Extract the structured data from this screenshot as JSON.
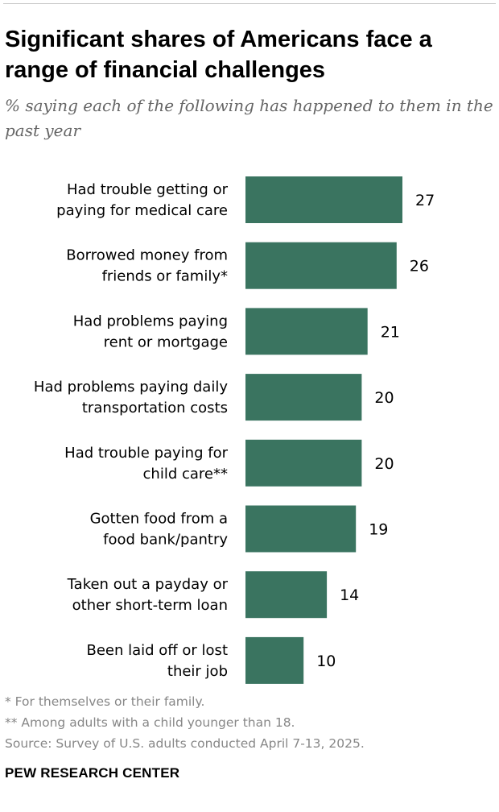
{
  "title": "Significant shares of Americans face a range of financial challenges",
  "subtitle": "% saying each of the following has happened to them in the past year",
  "chart_data": {
    "type": "bar",
    "orientation": "horizontal",
    "categories": [
      [
        "Had trouble getting or",
        "paying for medical care"
      ],
      [
        "Borrowed money from",
        "friends or family*"
      ],
      [
        "Had problems paying",
        "rent or mortgage"
      ],
      [
        "Had problems paying daily",
        "transportation costs"
      ],
      [
        "Had trouble paying for",
        "child care**"
      ],
      [
        "Gotten food from a",
        "food bank/pantry"
      ],
      [
        "Taken out a payday or",
        "other short-term loan"
      ],
      [
        "Been laid off or lost",
        "their job"
      ]
    ],
    "values": [
      27,
      26,
      21,
      20,
      20,
      19,
      14,
      10
    ],
    "data_labels": [
      "27",
      "26",
      "21",
      "20",
      "20",
      "19",
      "14",
      "10"
    ],
    "xlim": [
      0,
      27
    ],
    "grid": false,
    "legend": "none",
    "bar_color": "#3a7460"
  },
  "notes": [
    "* For themselves or their family.",
    "** Among adults with a child younger than 18.",
    "Source: Survey of U.S. adults conducted April 7-13, 2025."
  ],
  "branding": "PEW RESEARCH CENTER"
}
